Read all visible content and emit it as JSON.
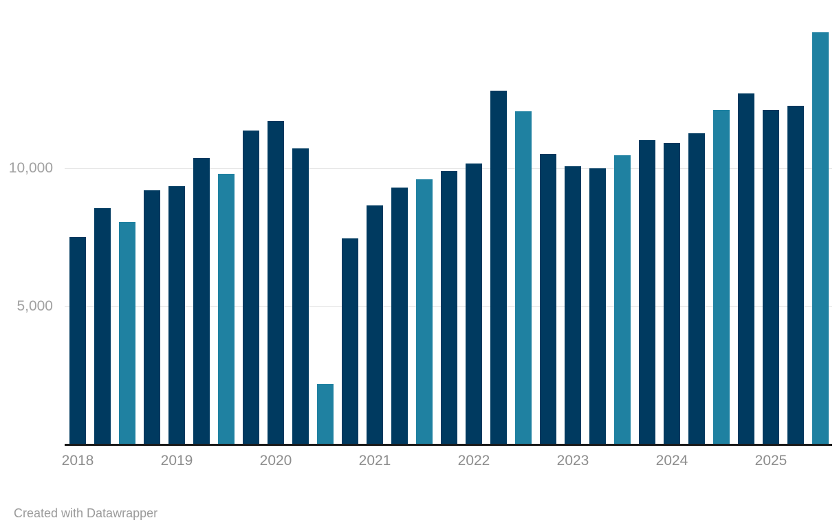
{
  "chart_data": {
    "type": "bar",
    "title": "",
    "xlabel": "",
    "ylabel": "",
    "categories": [
      "2018 Q1",
      "2018 Q2",
      "2018 Q3",
      "2018 Q4",
      "2019 Q1",
      "2019 Q2",
      "2019 Q3",
      "2019 Q4",
      "2020 Q1",
      "2020 Q2",
      "2020 Q3",
      "2020 Q4",
      "2021 Q1",
      "2021 Q2",
      "2021 Q3",
      "2021 Q4",
      "2022 Q1",
      "2022 Q2",
      "2022 Q3",
      "2022 Q4",
      "2023 Q1",
      "2023 Q2",
      "2023 Q3",
      "2023 Q4",
      "2024 Q1",
      "2024 Q2",
      "2024 Q3",
      "2024 Q4",
      "2025 Q1",
      "2025 Q2",
      "2025 Q3"
    ],
    "values": [
      7500,
      8550,
      8050,
      9200,
      9350,
      10350,
      9800,
      11350,
      11700,
      10700,
      2200,
      7450,
      8650,
      9300,
      9600,
      9900,
      10150,
      12800,
      12050,
      10500,
      10050,
      10000,
      10450,
      11000,
      10900,
      11250,
      12100,
      12700,
      12100,
      12250,
      14900
    ],
    "highlight_indices": [
      2,
      6,
      10,
      14,
      18,
      22,
      26,
      30
    ],
    "ylim": [
      0,
      15000
    ],
    "y_ticks": [
      {
        "value": 5000,
        "label": "5,000"
      },
      {
        "value": 10000,
        "label": "10,000"
      }
    ],
    "x_ticks": [
      {
        "index": 0,
        "label": "2018"
      },
      {
        "index": 4,
        "label": "2019"
      },
      {
        "index": 8,
        "label": "2020"
      },
      {
        "index": 12,
        "label": "2021"
      },
      {
        "index": 16,
        "label": "2022"
      },
      {
        "index": 20,
        "label": "2023"
      },
      {
        "index": 24,
        "label": "2024"
      },
      {
        "index": 28,
        "label": "2025"
      }
    ],
    "grid": "horizontal",
    "legend": "none",
    "colors": {
      "bar_default": "#003a60",
      "bar_highlight": "#1f81a1",
      "gridline": "#e4e4e4",
      "axis_line": "#1a1a1a",
      "y_tick_label": "#a1a1a1",
      "x_tick_label": "#8d8d8d",
      "footer_text": "#9b9b9b",
      "background": "#ffffff"
    }
  },
  "footer": {
    "credit": "Created with Datawrapper"
  }
}
